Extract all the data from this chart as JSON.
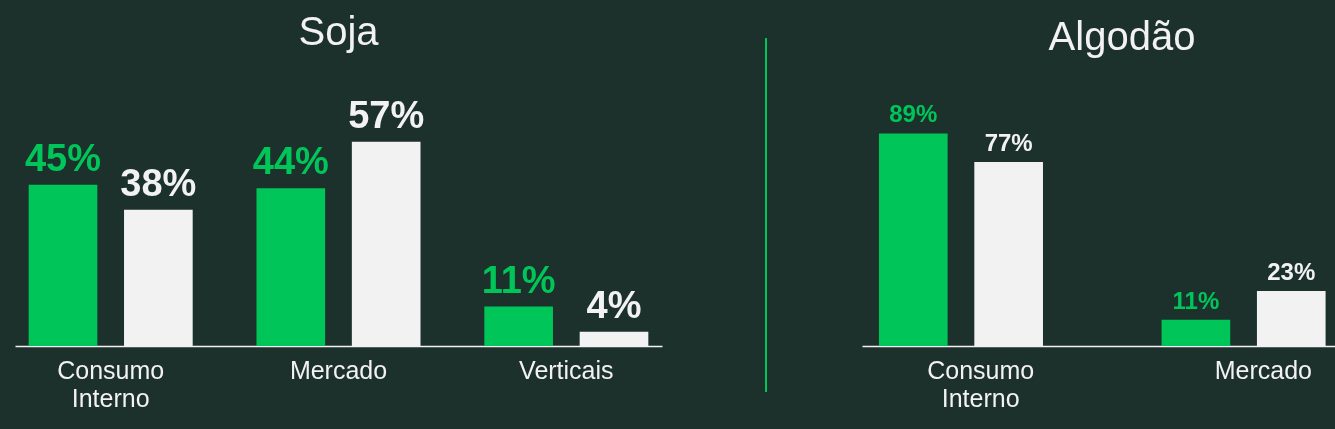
{
  "chart_data": [
    {
      "type": "bar",
      "title": "Soja",
      "categories": [
        "Consumo Interno",
        "Mercado",
        "Verticais"
      ],
      "series": [
        {
          "color": "#00c65a",
          "values": [
            45,
            44,
            11
          ],
          "value_labels": [
            "45%",
            "44%",
            "11%"
          ]
        },
        {
          "color": "#f2f2f2",
          "values": [
            38,
            57,
            4
          ],
          "value_labels": [
            "38%",
            "57%",
            "4%"
          ]
        }
      ],
      "legend": false,
      "grid": false
    },
    {
      "type": "bar",
      "title": "Algodão",
      "categories": [
        "Consumo Interno",
        "Mercado"
      ],
      "series": [
        {
          "color": "#00c65a",
          "values": [
            89,
            11
          ],
          "value_labels": [
            "89%",
            "11%"
          ]
        },
        {
          "color": "#f2f2f2",
          "values": [
            77,
            23
          ],
          "value_labels": [
            "77%",
            "23%"
          ]
        }
      ],
      "legend": false,
      "grid": false
    }
  ]
}
